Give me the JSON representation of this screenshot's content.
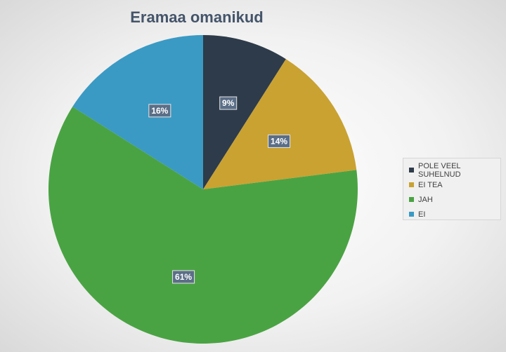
{
  "chart_data": {
    "type": "pie",
    "title": "Eramaa omanikud",
    "slices": [
      {
        "label": "POLE VEEL SUHELNUD",
        "value": 9,
        "display": "9%",
        "color": "#2e3b4a"
      },
      {
        "label": "EI TEA",
        "value": 14,
        "display": "14%",
        "color": "#c9a232"
      },
      {
        "label": "JAH",
        "value": 61,
        "display": "61%",
        "color": "#4aa343"
      },
      {
        "label": "EI",
        "value": 16,
        "display": "16%",
        "color": "#3a9ac4"
      }
    ],
    "legend_position": "right",
    "label_box_color": "#5b6e87"
  }
}
